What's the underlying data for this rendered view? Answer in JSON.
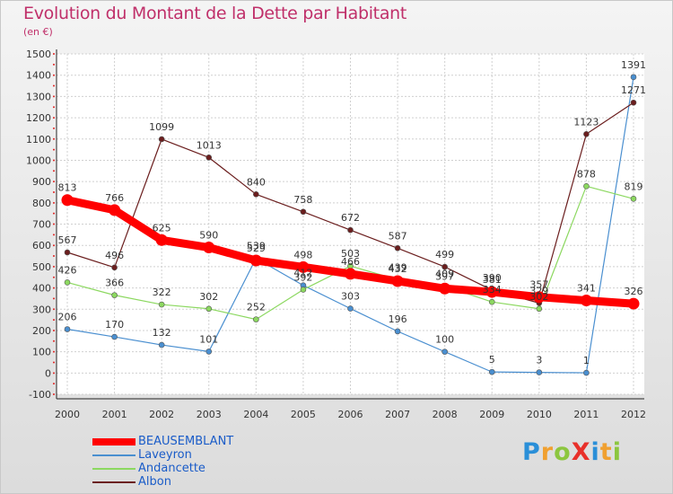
{
  "title": "Evolution du Montant de la Dette par Habitant",
  "subtitle": "(en €)",
  "brand": {
    "text": "ProXiti",
    "letters": [
      {
        "ch": "P",
        "color": "#2a8fd8"
      },
      {
        "ch": "r",
        "color": "#f0a030"
      },
      {
        "ch": "o",
        "color": "#8cc63f"
      },
      {
        "ch": "X",
        "color": "#e8302a"
      },
      {
        "ch": "i",
        "color": "#2a8fd8"
      },
      {
        "ch": "t",
        "color": "#f0a030"
      },
      {
        "ch": "i",
        "color": "#8cc63f"
      }
    ]
  },
  "chart_data": {
    "type": "line",
    "title": "Evolution du Montant de la Dette par Habitant",
    "subtitle": "(en €)",
    "xlabel": "",
    "ylabel": "",
    "x": [
      "2000",
      "2001",
      "2002",
      "2003",
      "2004",
      "2005",
      "2006",
      "2007",
      "2008",
      "2009",
      "2010",
      "2011",
      "2012"
    ],
    "ylim": [
      -100,
      1500
    ],
    "yticks": [
      -100,
      0,
      100,
      200,
      300,
      400,
      500,
      600,
      700,
      800,
      900,
      1000,
      1100,
      1200,
      1300,
      1400,
      1500
    ],
    "grid": true,
    "legend_position": "bottom-left",
    "series": [
      {
        "name": "BEAUSEMBLANT",
        "color": "#ff0000",
        "values": [
          813,
          766,
          625,
          590,
          529,
          498,
          466,
          432,
          397,
          381,
          357,
          341,
          326
        ]
      },
      {
        "name": "Laveyron",
        "color": "#4a8fd0",
        "values": [
          206,
          170,
          132,
          101,
          539,
          412,
          303,
          196,
          100,
          5,
          3,
          1,
          1391
        ]
      },
      {
        "name": "Andancette",
        "color": "#8cd860",
        "values": [
          426,
          366,
          322,
          302,
          252,
          392,
          503,
          439,
          409,
          334,
          302,
          878,
          819
        ]
      },
      {
        "name": "Albon",
        "color": "#6b1e1e",
        "values": [
          567,
          496,
          1099,
          1013,
          840,
          758,
          672,
          587,
          499,
          390,
          329,
          1123,
          1271
        ]
      }
    ]
  }
}
